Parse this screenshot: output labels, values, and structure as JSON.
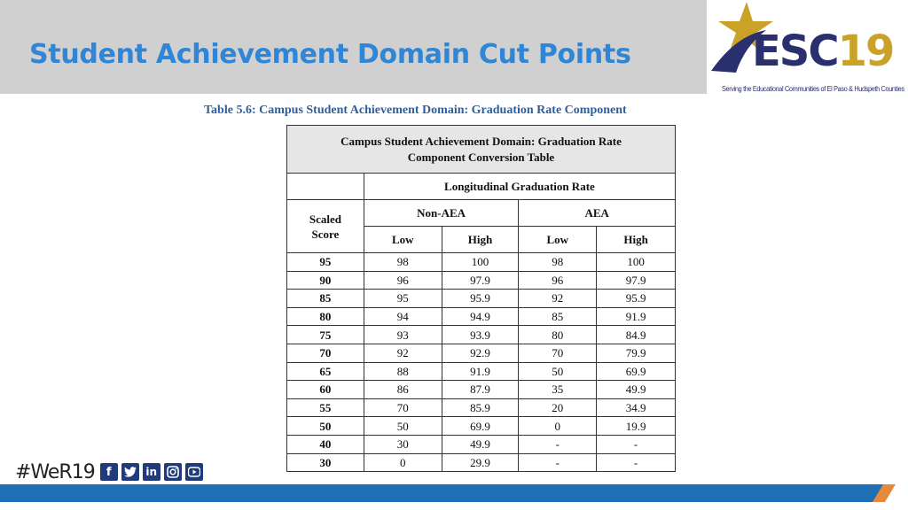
{
  "slide": {
    "title": "Student Achievement Domain Cut Points"
  },
  "logo": {
    "letters": "ESC",
    "number": "19",
    "tagline": "Serving the Educational Communities of El Paso & Hudspeth Counties"
  },
  "table_caption": "Table 5.6: Campus Student Achievement Domain: Graduation Rate Component",
  "table": {
    "title_line1": "Campus Student Achievement Domain: Graduation Rate",
    "title_line2": "Component Conversion Table",
    "group_header": "Longitudinal Graduation Rate",
    "subgroups": [
      "Non-AEA",
      "AEA"
    ],
    "row_header_line1": "Scaled",
    "row_header_line2": "Score",
    "col_low": "Low",
    "col_high": "High",
    "rows": [
      [
        "95",
        "98",
        "100",
        "98",
        "100"
      ],
      [
        "90",
        "96",
        "97.9",
        "96",
        "97.9"
      ],
      [
        "85",
        "95",
        "95.9",
        "92",
        "95.9"
      ],
      [
        "80",
        "94",
        "94.9",
        "85",
        "91.9"
      ],
      [
        "75",
        "93",
        "93.9",
        "80",
        "84.9"
      ],
      [
        "70",
        "92",
        "92.9",
        "70",
        "79.9"
      ],
      [
        "65",
        "88",
        "91.9",
        "50",
        "69.9"
      ],
      [
        "60",
        "86",
        "87.9",
        "35",
        "49.9"
      ],
      [
        "55",
        "70",
        "85.9",
        "20",
        "34.9"
      ],
      [
        "50",
        "50",
        "69.9",
        "0",
        "19.9"
      ],
      [
        "40",
        "30",
        "49.9",
        "-",
        "-"
      ],
      [
        "30",
        "0",
        "29.9",
        "-",
        "-"
      ]
    ]
  },
  "social": {
    "hashtag": "#WeR19",
    "icons": [
      "facebook-icon",
      "twitter-icon",
      "linkedin-icon",
      "instagram-icon",
      "youtube-icon"
    ]
  },
  "colors": {
    "title_blue": "#2f86d6",
    "title_band": "#d0d0d0",
    "logo_navy": "#2a2f6e",
    "logo_gold": "#c9a227",
    "bar_blue": "#1f6fb5",
    "bar_orange": "#e8883a"
  }
}
